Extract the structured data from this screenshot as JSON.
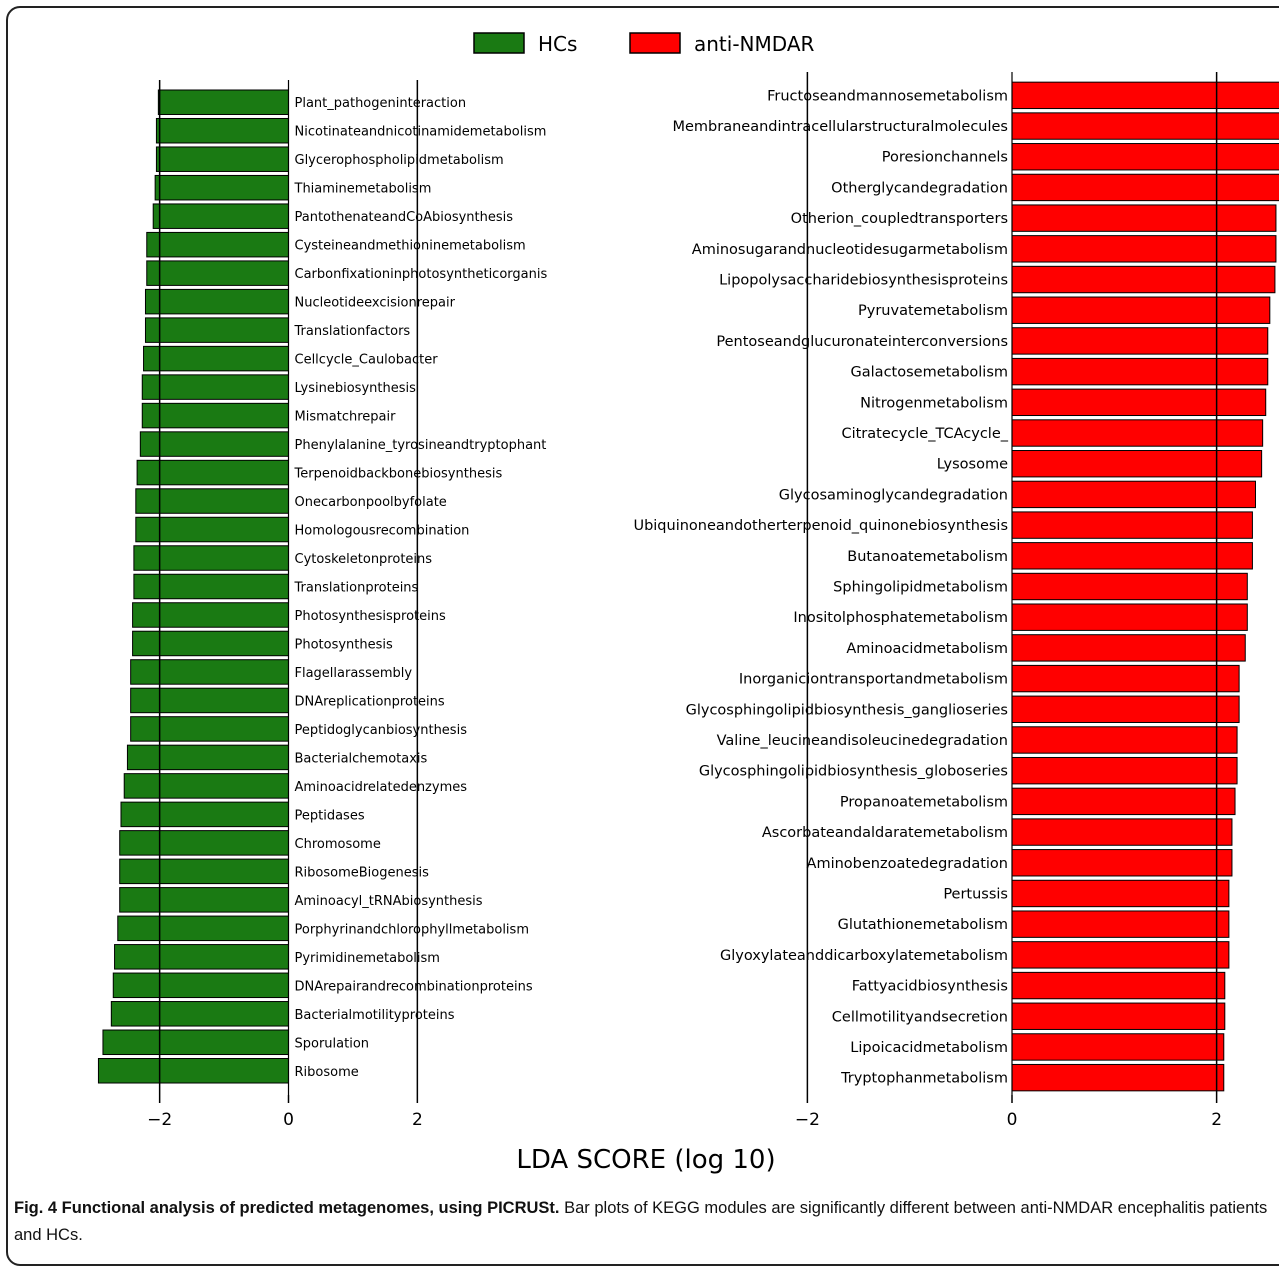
{
  "caption": {
    "bold": "Fig. 4 Functional analysis of predicted metagenomes, using PICRUSt.",
    "text": " Bar plots of KEGG modules are significantly different between anti-NMDAR encephalitis patients and HCs."
  },
  "chart_data": {
    "type": "bar",
    "orientation": "horizontal",
    "xlabel": "LDA SCORE (log 10)",
    "legend": {
      "position": "top-center",
      "entries": [
        {
          "name": "HCs",
          "color": "#1a7a13"
        },
        {
          "name": "anti-NMDAR",
          "color": "#ff0000"
        }
      ]
    },
    "panels": [
      {
        "group": "HCs",
        "color": "#1a7a13",
        "xlim": [
          -3.05,
          3.05
        ],
        "xticks": [
          -2,
          0,
          2
        ],
        "xtick_labels": [
          "−2",
          "0",
          "2"
        ],
        "vlines": [
          -2,
          2
        ],
        "label_side": "right-of-zero",
        "categories": [
          "Plant_pathogeninteraction",
          "Nicotinateandnicotinamidemetabolism",
          "Glycerophospholipidmetabolism",
          "Thiaminemetabolism",
          "PantothenateandCoAbiosynthesis",
          "Cysteineandmethioninemetabolism",
          "Carbonfixationinphotosyntheticorganis",
          "Nucleotideexcisionrepair",
          "Translationfactors",
          "Cellcycle_Caulobacter",
          "Lysinebiosynthesis",
          "Mismatchrepair",
          "Phenylalanine_tyrosineandtryptophant",
          "Terpenoidbackbonebiosynthesis",
          "Onecarbonpoolbyfolate",
          "Homologousrecombination",
          "Cytoskeletonproteins",
          "Translationproteins",
          "Photosynthesisproteins",
          "Photosynthesis",
          "Flagellarassembly",
          "DNAreplicationproteins",
          "Peptidoglycanbiosynthesis",
          "Bacterialchemotaxis",
          "Aminoacidrelatedenzymes",
          "Peptidases",
          "Chromosome",
          "RibosomeBiogenesis",
          "Aminoacyl_tRNAbiosynthesis",
          "Porphyrinandchlorophyllmetabolism",
          "Pyrimidinemetabolism",
          "DNArepairandrecombinationproteins",
          "Bacterialmotilityproteins",
          "Sporulation",
          "Ribosome"
        ],
        "values": [
          -2.02,
          -2.05,
          -2.05,
          -2.07,
          -2.1,
          -2.2,
          -2.2,
          -2.22,
          -2.22,
          -2.25,
          -2.27,
          -2.27,
          -2.3,
          -2.35,
          -2.37,
          -2.37,
          -2.4,
          -2.4,
          -2.42,
          -2.42,
          -2.45,
          -2.45,
          -2.45,
          -2.5,
          -2.55,
          -2.6,
          -2.62,
          -2.62,
          -2.62,
          -2.65,
          -2.7,
          -2.72,
          -2.75,
          -2.88,
          -2.95
        ]
      },
      {
        "group": "anti-NMDAR",
        "color": "#ff0000",
        "xlim": [
          -2.6,
          2.6
        ],
        "xticks": [
          -2,
          0,
          2
        ],
        "xtick_labels": [
          "−2",
          "0",
          "2"
        ],
        "vlines": [
          -2,
          2
        ],
        "label_side": "left-of-zero",
        "categories": [
          "Fructoseandmannosemetabolism",
          "Membraneandintracellularstructuralmolecules",
          "Poresionchannels",
          "Otherglycandegradation",
          "Otherion_coupledtransporters",
          "Aminosugarandnucleotidesugarmetabolism",
          "Lipopolysaccharidebiosynthesisproteins",
          "Pyruvatemetabolism",
          "Pentoseandglucuronateinterconversions",
          "Galactosemetabolism",
          "Nitrogenmetabolism",
          "Citratecycle_TCAcycle_",
          "Lysosome",
          "Glycosaminoglycandegradation",
          "Ubiquinoneandotherterpenoid_quinonebiosynthesis",
          "Butanoatemetabolism",
          "Sphingolipidmetabolism",
          "Inositolphosphatemetabolism",
          "Aminoacidmetabolism",
          "Inorganiciontransportandmetabolism",
          "Glycosphingolipidbiosynthesis_ganglioseries",
          "Valine_leucineandisoleucinedegradation",
          "Glycosphingolipidbiosynthesis_globoseries",
          "Propanoatemetabolism",
          "Ascorbateandaldaratemetabolism",
          "Aminobenzoatedegradation",
          "Pertussis",
          "Glutathionemetabolism",
          "Glyoxylateanddicarboxylatemetabolism",
          "Fattyacidbiosynthesis",
          "Cellmotilityandsecretion",
          "Lipoicacidmetabolism",
          "Tryptophanmetabolism"
        ],
        "values": [
          2.73,
          2.72,
          2.66,
          2.65,
          2.58,
          2.58,
          2.57,
          2.52,
          2.5,
          2.5,
          2.48,
          2.45,
          2.44,
          2.38,
          2.35,
          2.35,
          2.3,
          2.3,
          2.28,
          2.22,
          2.22,
          2.2,
          2.2,
          2.18,
          2.15,
          2.15,
          2.12,
          2.12,
          2.12,
          2.08,
          2.08,
          2.07,
          2.07
        ]
      }
    ]
  }
}
